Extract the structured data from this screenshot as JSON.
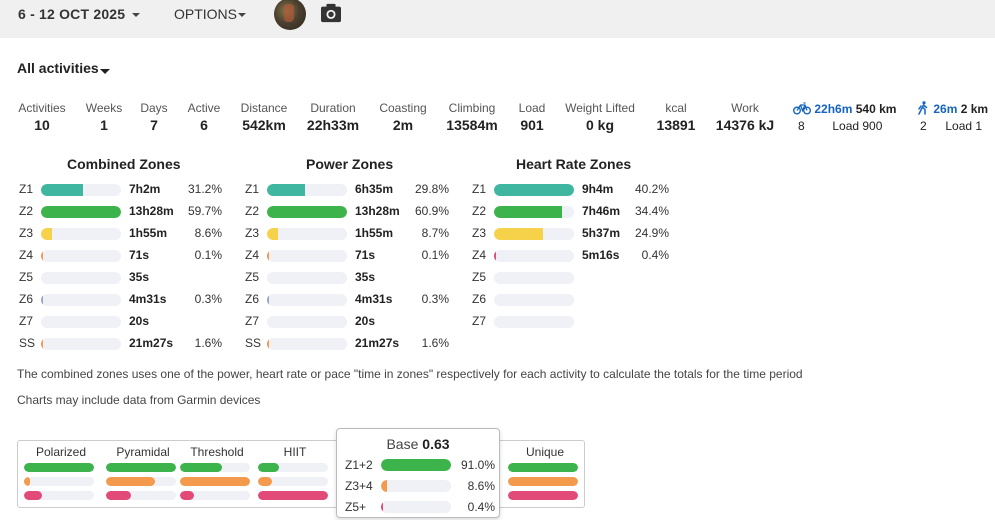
{
  "colors": {
    "green": "#3cb44b",
    "teal": "#3fb6a0",
    "yellow": "#f6d24b",
    "orange": "#f49a4c",
    "pink": "#e24a78",
    "red": "#e0474c",
    "link_blue": "#1565c0"
  },
  "topbar": {
    "date_range": "6 - 12 OCT 2025",
    "options_label": "OPTIONS",
    "avatar_icon": "user-avatar",
    "camera_icon": "camera-icon"
  },
  "filter": {
    "label": "All activities"
  },
  "stats": [
    {
      "label": "Activities",
      "value": "10"
    },
    {
      "label": "Weeks",
      "value": "1"
    },
    {
      "label": "Days",
      "value": "7"
    },
    {
      "label": "Active",
      "value": "6"
    },
    {
      "label": "Distance",
      "value": "542km"
    },
    {
      "label": "Duration",
      "value": "22h33m"
    },
    {
      "label": "Coasting",
      "value": "2m"
    },
    {
      "label": "Climbing",
      "value": "13584m"
    },
    {
      "label": "Load",
      "value": "901"
    },
    {
      "label": "Weight Lifted",
      "value": "0 kg"
    },
    {
      "label": "kcal",
      "value": "13891"
    },
    {
      "label": "Work",
      "value": "14376 kJ"
    }
  ],
  "sports": {
    "ride": {
      "icon": "bike-icon",
      "time": "22h6m",
      "dist": "540 km",
      "count": "8",
      "load": "Load 900"
    },
    "walk": {
      "icon": "walk-icon",
      "time": "26m",
      "dist": "2 km",
      "count": "2",
      "load": "Load 1"
    }
  },
  "combined": {
    "title": "Combined Zones",
    "rows": [
      {
        "zone": "Z1",
        "time": "7h2m",
        "pct": "31.2%",
        "level": 0.52,
        "color": "#3fb6a0"
      },
      {
        "zone": "Z2",
        "time": "13h28m",
        "pct": "59.7%",
        "level": 1.0,
        "color": "#3cb44b"
      },
      {
        "zone": "Z3",
        "time": "1h55m",
        "pct": "8.6%",
        "level": 0.14,
        "color": "#f6d24b"
      },
      {
        "zone": "Z4",
        "time": "71s",
        "pct": "0.1%",
        "level": 0.02,
        "color": "#f49a4c"
      },
      {
        "zone": "Z5",
        "time": "35s",
        "pct": "",
        "level": 0.0,
        "color": "#e24a78"
      },
      {
        "zone": "Z6",
        "time": "4m31s",
        "pct": "0.3%",
        "level": 0.02,
        "color": "#9aa5c8"
      },
      {
        "zone": "Z7",
        "time": "20s",
        "pct": "",
        "level": 0.0,
        "color": "#9aa5c8"
      },
      {
        "zone": "SS",
        "time": "21m27s",
        "pct": "1.6%",
        "level": 0.03,
        "color": "#f49a4c"
      }
    ]
  },
  "power": {
    "title": "Power Zones",
    "rows": [
      {
        "zone": "Z1",
        "time": "6h35m",
        "pct": "29.8%",
        "level": 0.48,
        "color": "#3fb6a0"
      },
      {
        "zone": "Z2",
        "time": "13h28m",
        "pct": "60.9%",
        "level": 1.0,
        "color": "#3cb44b"
      },
      {
        "zone": "Z3",
        "time": "1h55m",
        "pct": "8.7%",
        "level": 0.14,
        "color": "#f6d24b"
      },
      {
        "zone": "Z4",
        "time": "71s",
        "pct": "0.1%",
        "level": 0.02,
        "color": "#f49a4c"
      },
      {
        "zone": "Z5",
        "time": "35s",
        "pct": "",
        "level": 0.0,
        "color": "#e24a78"
      },
      {
        "zone": "Z6",
        "time": "4m31s",
        "pct": "0.3%",
        "level": 0.02,
        "color": "#9aa5c8"
      },
      {
        "zone": "Z7",
        "time": "20s",
        "pct": "",
        "level": 0.0,
        "color": "#9aa5c8"
      },
      {
        "zone": "SS",
        "time": "21m27s",
        "pct": "1.6%",
        "level": 0.03,
        "color": "#f49a4c"
      }
    ]
  },
  "heart": {
    "title": "Heart Rate Zones",
    "rows": [
      {
        "zone": "Z1",
        "time": "9h4m",
        "pct": "40.2%",
        "level": 1.0,
        "color": "#3fb6a0"
      },
      {
        "zone": "Z2",
        "time": "7h46m",
        "pct": "34.4%",
        "level": 0.85,
        "color": "#3cb44b"
      },
      {
        "zone": "Z3",
        "time": "5h37m",
        "pct": "24.9%",
        "level": 0.61,
        "color": "#f6d24b"
      },
      {
        "zone": "Z4",
        "time": "5m16s",
        "pct": "0.4%",
        "level": 0.02,
        "color": "#e24a78"
      },
      {
        "zone": "Z5",
        "time": "",
        "pct": "",
        "level": 0.0,
        "color": "#e24a78"
      },
      {
        "zone": "Z6",
        "time": "",
        "pct": "",
        "level": 0.0,
        "color": "#9aa5c8"
      },
      {
        "zone": "Z7",
        "time": "",
        "pct": "",
        "level": 0.0,
        "color": "#9aa5c8"
      }
    ]
  },
  "notes": {
    "combined_note": "The combined zones uses one of the power, heart rate or pace \"time in zones\" respectively for each activity to calculate the totals for the time period",
    "garmin_note": "Charts may include data from Garmin devices"
  },
  "distributions": [
    {
      "label": "Polarized",
      "bars": [
        {
          "level": 1.0,
          "color": "#3cb44b"
        },
        {
          "level": 0.08,
          "color": "#f49a4c"
        },
        {
          "level": 0.25,
          "color": "#e24a78"
        }
      ]
    },
    {
      "label": "Pyramidal",
      "bars": [
        {
          "level": 1.0,
          "color": "#3cb44b"
        },
        {
          "level": 0.7,
          "color": "#f49a4c"
        },
        {
          "level": 0.35,
          "color": "#e24a78"
        }
      ]
    },
    {
      "label": "Threshold",
      "bars": [
        {
          "level": 0.6,
          "color": "#3cb44b"
        },
        {
          "level": 1.0,
          "color": "#f49a4c"
        },
        {
          "level": 0.2,
          "color": "#e24a78"
        }
      ]
    },
    {
      "label": "HIIT",
      "bars": [
        {
          "level": 0.3,
          "color": "#3cb44b"
        },
        {
          "level": 0.2,
          "color": "#f49a4c"
        },
        {
          "level": 1.0,
          "color": "#e24a78"
        }
      ]
    },
    {
      "label": "Unique",
      "bars": [
        {
          "level": 1.0,
          "color": "#3cb44b"
        },
        {
          "level": 1.0,
          "color": "#f49a4c"
        },
        {
          "level": 1.0,
          "color": "#e24a78"
        }
      ]
    }
  ],
  "tooltip": {
    "title": "Base",
    "score": "0.63",
    "rows": [
      {
        "label": "Z1+2",
        "pct": "91.0%",
        "level": 1.0,
        "color": "#3cb44b"
      },
      {
        "label": "Z3+4",
        "pct": "8.6%",
        "level": 0.09,
        "color": "#f49a4c"
      },
      {
        "label": "Z5+",
        "pct": "0.4%",
        "level": 0.01,
        "color": "#e24a78"
      }
    ]
  }
}
